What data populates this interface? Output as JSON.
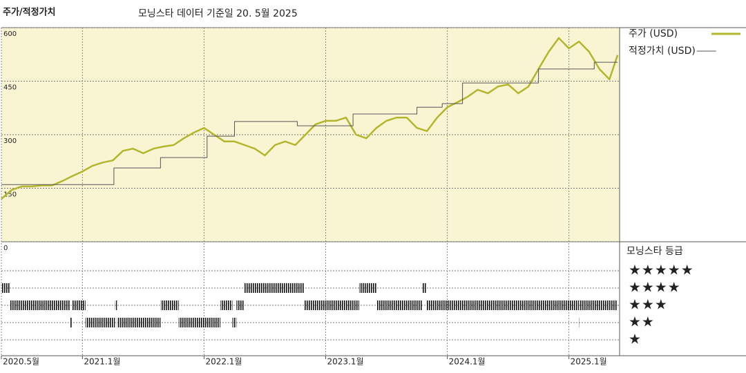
{
  "chart_data": [
    {
      "type": "line",
      "title": "주가/적정가치",
      "subtitle": "모닝스타 데이터 기준일 20. 5월 2025",
      "xlim": [
        0,
        61
      ],
      "xticks": [
        {
          "value": 0,
          "label": "2020.5월"
        },
        {
          "value": 8,
          "label": "2021.1월"
        },
        {
          "value": 20,
          "label": "2022.1월"
        },
        {
          "value": 32,
          "label": "2023.1월"
        },
        {
          "value": 44,
          "label": "2024.1월"
        },
        {
          "value": 56,
          "label": "2025.1월"
        }
      ],
      "ylim": [
        0,
        600
      ],
      "yticks": [
        0,
        150,
        300,
        450,
        600
      ],
      "grid": true,
      "series": [
        {
          "name": "주가 (USD)",
          "color": "#b3b52c",
          "width": 2.5,
          "x": [
            0,
            1,
            2,
            3,
            4,
            5,
            6,
            7,
            8,
            9,
            10,
            11,
            12,
            13,
            14,
            15,
            16,
            17,
            18,
            19,
            20,
            21,
            22,
            23,
            24,
            25,
            26,
            27,
            28,
            29,
            30,
            31,
            32,
            33,
            34,
            35,
            36,
            37,
            38,
            39,
            40,
            41,
            42,
            43,
            44,
            45,
            46,
            47,
            48,
            49,
            50,
            51,
            52,
            53,
            54,
            55,
            56,
            57,
            58,
            59,
            60,
            60.8
          ],
          "values": [
            120,
            145,
            155,
            155,
            158,
            158,
            170,
            184,
            197,
            213,
            222,
            228,
            255,
            261,
            248,
            261,
            267,
            271,
            290,
            306,
            319,
            300,
            281,
            281,
            271,
            261,
            242,
            271,
            281,
            271,
            300,
            329,
            339,
            339,
            348,
            300,
            290,
            319,
            339,
            348,
            348,
            319,
            310,
            348,
            377,
            391,
            406,
            426,
            416,
            435,
            441,
            416,
            435,
            484,
            532,
            571,
            542,
            561,
            532,
            484,
            455,
            523
          ]
        },
        {
          "name": "적정가치 (USD)",
          "color": "#555555",
          "width": 1,
          "x": [
            0,
            11.1,
            11.1,
            15.7,
            15.7,
            20.3,
            20.3,
            23,
            23,
            29.2,
            29.2,
            34.7,
            34.7,
            41,
            41,
            43.5,
            43.5,
            45.5,
            45.5,
            53,
            53,
            58.5,
            58.5,
            60.8
          ],
          "values": [
            160,
            160,
            207,
            207,
            236,
            236,
            296,
            296,
            337,
            337,
            325,
            325,
            358,
            358,
            377,
            377,
            387,
            387,
            445,
            445,
            484,
            484,
            503,
            503
          ]
        }
      ]
    },
    {
      "type": "rating",
      "title": "모닝스타 등급",
      "ylim": [
        1,
        5
      ],
      "yticks": [
        {
          "value": 5,
          "label": "★★★★★"
        },
        {
          "value": 4,
          "label": "★★★★"
        },
        {
          "value": 3,
          "label": "★★★"
        },
        {
          "value": 2,
          "label": "★★"
        },
        {
          "value": 1,
          "label": "★"
        }
      ],
      "segments": [
        {
          "start": 0,
          "end": 0.8,
          "rating": 4
        },
        {
          "start": 0.8,
          "end": 6.8,
          "rating": 3
        },
        {
          "start": 6.8,
          "end": 7.0,
          "rating": 2
        },
        {
          "start": 7.0,
          "end": 8.3,
          "rating": 3
        },
        {
          "start": 8.3,
          "end": 11.2,
          "rating": 2
        },
        {
          "start": 11.2,
          "end": 11.4,
          "rating": 3
        },
        {
          "start": 11.4,
          "end": 15.7,
          "rating": 2
        },
        {
          "start": 15.7,
          "end": 17.5,
          "rating": 3
        },
        {
          "start": 17.5,
          "end": 21.6,
          "rating": 2
        },
        {
          "start": 21.6,
          "end": 22.8,
          "rating": 3
        },
        {
          "start": 22.8,
          "end": 23.2,
          "rating": 2
        },
        {
          "start": 23.2,
          "end": 23.9,
          "rating": 3
        },
        {
          "start": 23.9,
          "end": 29.9,
          "rating": 4
        },
        {
          "start": 29.9,
          "end": 35.3,
          "rating": 3
        },
        {
          "start": 35.3,
          "end": 37.0,
          "rating": 4
        },
        {
          "start": 37.0,
          "end": 41.5,
          "rating": 3
        },
        {
          "start": 41.5,
          "end": 41.9,
          "rating": 4
        },
        {
          "start": 41.9,
          "end": 57.0,
          "rating": 3
        },
        {
          "start": 57.0,
          "end": 57.1,
          "rating": 2
        },
        {
          "start": 57.1,
          "end": 60.8,
          "rating": 3
        }
      ]
    }
  ]
}
